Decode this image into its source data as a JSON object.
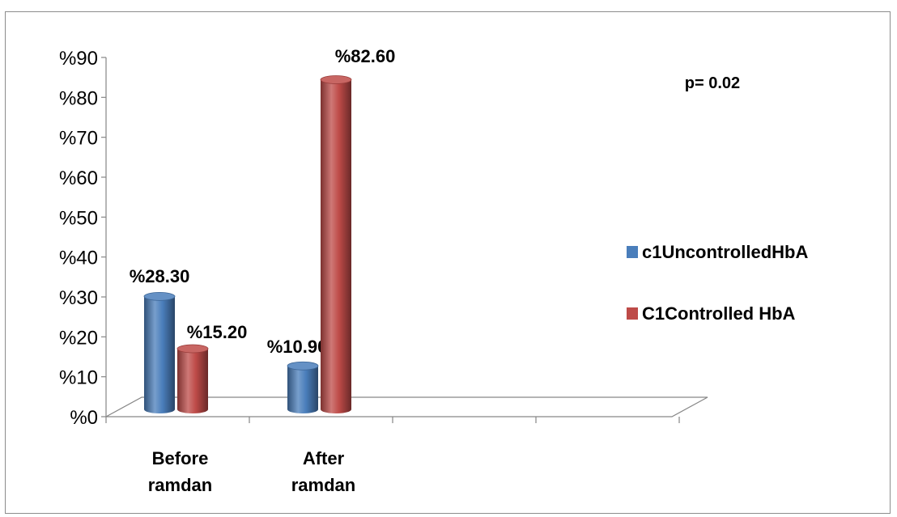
{
  "chart_data": {
    "type": "bar",
    "categories": [
      "Before ramdan",
      "After ramdan"
    ],
    "category_lines": [
      [
        "Before",
        "ramdan"
      ],
      [
        "After",
        "ramdan"
      ]
    ],
    "series": [
      {
        "name": "c1UncontrolledHbA",
        "values": [
          28.3,
          10.9
        ],
        "labels": [
          "%28.30",
          "%10.90"
        ],
        "color": "#4a7ebb"
      },
      {
        "name": "C1Controlled HbA",
        "values": [
          15.2,
          82.6
        ],
        "labels": [
          "%15.20",
          "%82.60"
        ],
        "color": "#be4b48"
      }
    ],
    "ylim": [
      0,
      90
    ],
    "yticks": [
      0,
      10,
      20,
      30,
      40,
      50,
      60,
      70,
      80,
      90
    ],
    "ytick_labels": [
      "%0",
      "%10",
      "%20",
      "%30",
      "%40",
      "%50",
      "%60",
      "%70",
      "%80",
      "%90"
    ],
    "annotation": "p= 0.02",
    "legend_position": "right",
    "style": "3d-cylinder"
  }
}
